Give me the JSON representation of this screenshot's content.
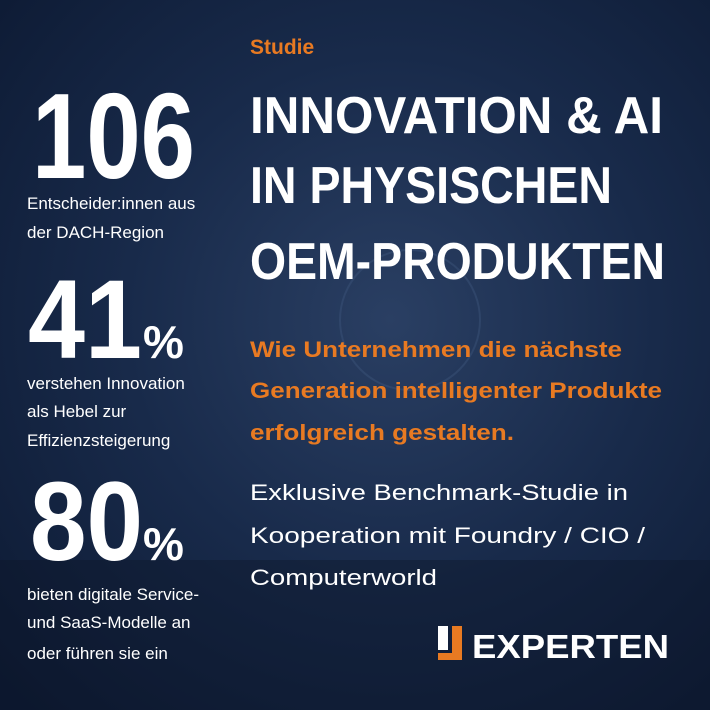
{
  "stats": [
    {
      "number": "106",
      "lines": [
        "Entscheider:innen aus",
        "der DACH-Region"
      ]
    },
    {
      "number": "41",
      "unit": "%",
      "lines": [
        "verstehen Innovation",
        "als Hebel zur",
        "Effizienzsteigerung"
      ]
    },
    {
      "number": "80",
      "unit": "%",
      "lines": [
        "bieten digitale Service-",
        "und SaaS-Modelle an",
        "oder führen sie ein"
      ]
    }
  ],
  "label": "Studie",
  "title": [
    "INNOVATION & AI",
    "IN PHYSISCHEN",
    "OEM-PRODUKTEN"
  ],
  "subtitle": [
    "Wie Unternehmen die nächste",
    "Generation intelligenter Produkte",
    "erfolgreich gestalten."
  ],
  "description": [
    "Exklusive Benchmark-Studie in",
    "Kooperation mit Foundry / CIO /",
    "Computerworld"
  ],
  "logo": "EXPERTEN"
}
